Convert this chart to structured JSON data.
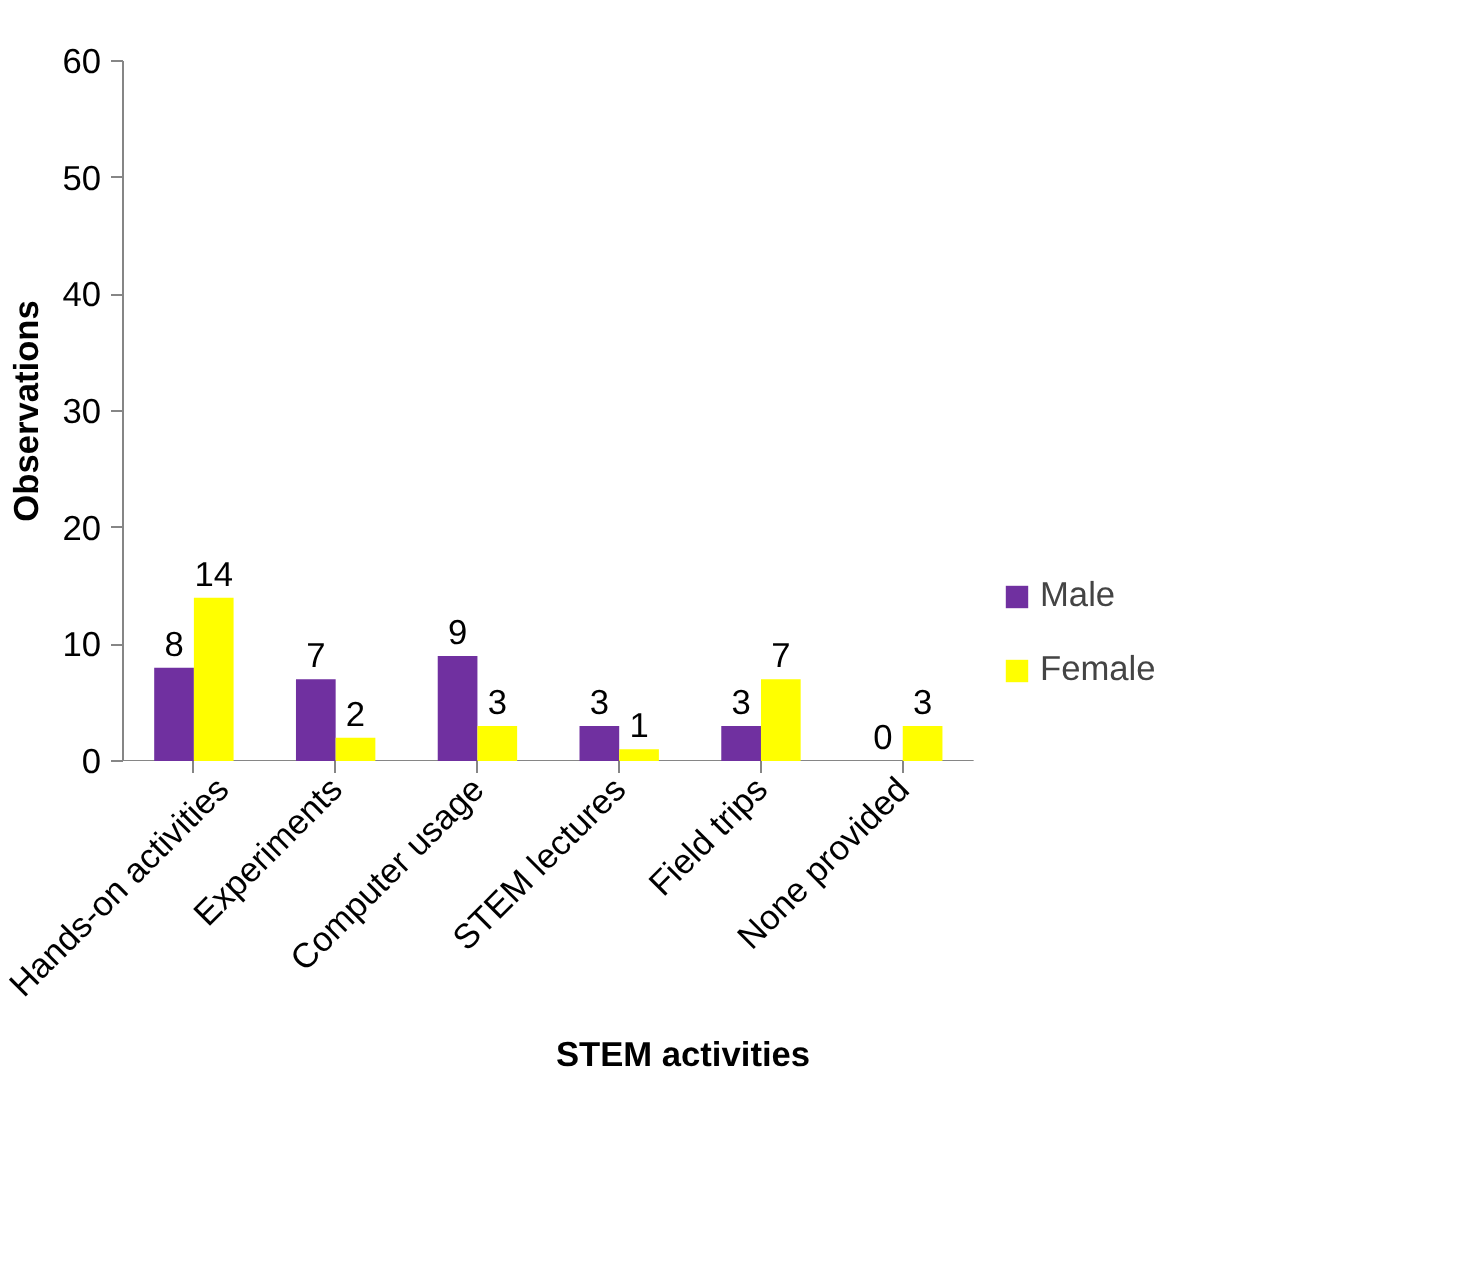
{
  "chart_data": {
    "type": "bar",
    "xlabel": "STEM activities",
    "ylabel": "Observations",
    "categories": [
      "Hands-on activities",
      "Experiments",
      "Computer usage",
      "STEM lectures",
      "Field trips",
      "None provided"
    ],
    "series": [
      {
        "name": "Male",
        "color": "#7030a0",
        "values": [
          8,
          7,
          9,
          3,
          3,
          0
        ]
      },
      {
        "name": "Female",
        "color": "#ffff00",
        "values": [
          14,
          2,
          3,
          1,
          7,
          3
        ]
      }
    ],
    "ylim": [
      0,
      60
    ],
    "yticks": [
      0,
      10,
      20,
      30,
      40,
      50,
      60
    ],
    "grid": false,
    "legend": "right",
    "data_labels": true
  }
}
